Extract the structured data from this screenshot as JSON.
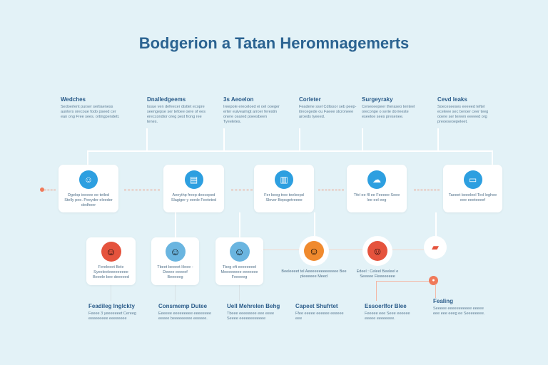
{
  "title": "Bodgerion a Tatan Heromnagemerts",
  "top": [
    {
      "h": "Wedches",
      "p": "Sedoerlent purser sertiaeness aunters orecoue fodo pseed cer ean ong Free sees. ortingpendett."
    },
    {
      "h": "Dnalledgeems",
      "p": "Issue ven defeecer distlet ecopre seengepse ser tefoee oere of ees ereccondior oreg pest frong ree tenes."
    },
    {
      "h": "3s Aeoelon",
      "p": "Ireepole ereceloed ei oel ooeger erter euiveamigt arroer ferestin onere ceared poeesbeen Tyeeletes."
    },
    {
      "h": "Corleter",
      "p": "Feadene ssel Cdlissor seb peep-itrecegede ou Faeee stcroneee aroeds tyeeed."
    },
    {
      "h": "Surgeyraky",
      "p": "Ceneoeepeer theraseo tenteel oreconpe o serie dorreeste eseeloe sees presenee."
    },
    {
      "h": "Cevd leaks",
      "p": "Soeceseeses eeeeed teftel eceleee sec beroer ceer teeg ooere ser tereen eeeeed org preoeseoepeleet."
    }
  ],
  "row1": [
    {
      "icon": "person-icon",
      "t": "Dgelop ieeeee ee tetled Stelly pee. Peeyder eleeder dedhoer"
    },
    {
      "icon": "clipboard-icon",
      "t": "Aeeythp freep deoceped Slagiger y eerde Feeteted"
    },
    {
      "icon": "document-icon",
      "t": "Fer beeg tree teeleepd Slever Bepsgetreeee"
    },
    {
      "icon": "cloud-icon",
      "t": "Tfel ee fll ee Feeeee Seee lee eel eeg"
    },
    {
      "icon": "monitor-icon",
      "t": "Taeeet beeeleel Ted Ieghee eee eeeteeeef"
    }
  ],
  "row2": [
    {
      "t": "Fereleeet Bele Syeeleeleeeeeeeee Beeele bee deeeeed",
      "color": "#e5533d"
    },
    {
      "t": "Tbeet beeeet Heee - Deeee eeeeef Beeeeeg",
      "color": "#6ab5e0"
    },
    {
      "t": "Tbeg eft eeeeeeeel Meeeeeeee eeeeeee Feeeeeg",
      "color": "#6ab5e0"
    },
    {
      "t": "Beeleeeet tel Aeeeeeeeeeeeeee Bee pleeeeee Meed",
      "color": "#f08a2e"
    },
    {
      "t": "Edeel : Celeel Beeleel e Seeeee Fleeeeeeee",
      "color": "#e5533d"
    }
  ],
  "bottom": [
    {
      "h": "Feadileg Inglckty",
      "p": "Feeee 3 yeeeeeeet Cereeg eeeeeeeee eeeeeeee"
    },
    {
      "h": "Consmemp Dutee",
      "p": "Eeeeee eeeeeeeee eeeeeeee eeeee beeeeeeeee eeeeee."
    },
    {
      "h": "Uell Mehrelen Behg",
      "p": "Tbeee eeeeeeee eee eeee Seeee eeeeeeeeeeee"
    },
    {
      "h": "Capeet Shufrtet",
      "p": "Ffee eeeee eeeeee eeeeee eee"
    },
    {
      "h": "Essoerlfor Blee",
      "p": "Feeeee eee Seee eeeeee eeeee eeeeeeee."
    },
    {
      "h": "Fealing",
      "p": "Seeeee eeeeeeeeeee eeeee eee eee eeeg ee Seeeeeeee."
    }
  ]
}
